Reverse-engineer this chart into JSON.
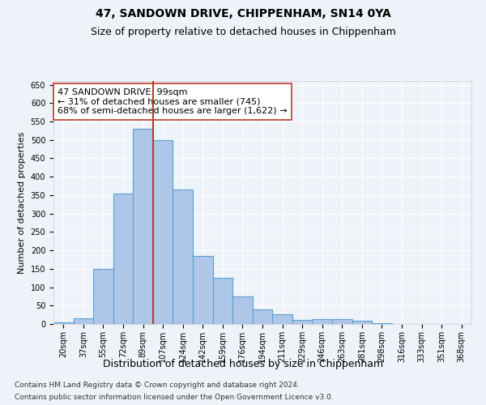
{
  "title": "47, SANDOWN DRIVE, CHIPPENHAM, SN14 0YA",
  "subtitle": "Size of property relative to detached houses in Chippenham",
  "xlabel": "Distribution of detached houses by size in Chippenham",
  "ylabel": "Number of detached properties",
  "categories": [
    "20sqm",
    "37sqm",
    "55sqm",
    "72sqm",
    "89sqm",
    "107sqm",
    "124sqm",
    "142sqm",
    "159sqm",
    "176sqm",
    "194sqm",
    "211sqm",
    "229sqm",
    "246sqm",
    "263sqm",
    "281sqm",
    "298sqm",
    "316sqm",
    "333sqm",
    "351sqm",
    "368sqm"
  ],
  "values": [
    5,
    15,
    150,
    355,
    530,
    500,
    365,
    185,
    125,
    75,
    40,
    27,
    10,
    13,
    13,
    8,
    2,
    1,
    1,
    0,
    0
  ],
  "bar_color": "#aec6e8",
  "bar_edgecolor": "#5a9fd4",
  "vline_x": 4.5,
  "vline_color": "#c0392b",
  "annotation_text": "47 SANDOWN DRIVE: 99sqm\n← 31% of detached houses are smaller (745)\n68% of semi-detached houses are larger (1,622) →",
  "annotation_box_edgecolor": "#c0392b",
  "annotation_box_facecolor": "#ffffff",
  "ylim": [
    0,
    660
  ],
  "yticks": [
    0,
    50,
    100,
    150,
    200,
    250,
    300,
    350,
    400,
    450,
    500,
    550,
    600,
    650
  ],
  "bg_color": "#eef3fa",
  "grid_color": "#ffffff",
  "footer1": "Contains HM Land Registry data © Crown copyright and database right 2024.",
  "footer2": "Contains public sector information licensed under the Open Government Licence v3.0.",
  "title_fontsize": 10,
  "subtitle_fontsize": 9,
  "xlabel_fontsize": 9,
  "ylabel_fontsize": 8,
  "tick_fontsize": 7,
  "annotation_fontsize": 8,
  "footer_fontsize": 6.5
}
